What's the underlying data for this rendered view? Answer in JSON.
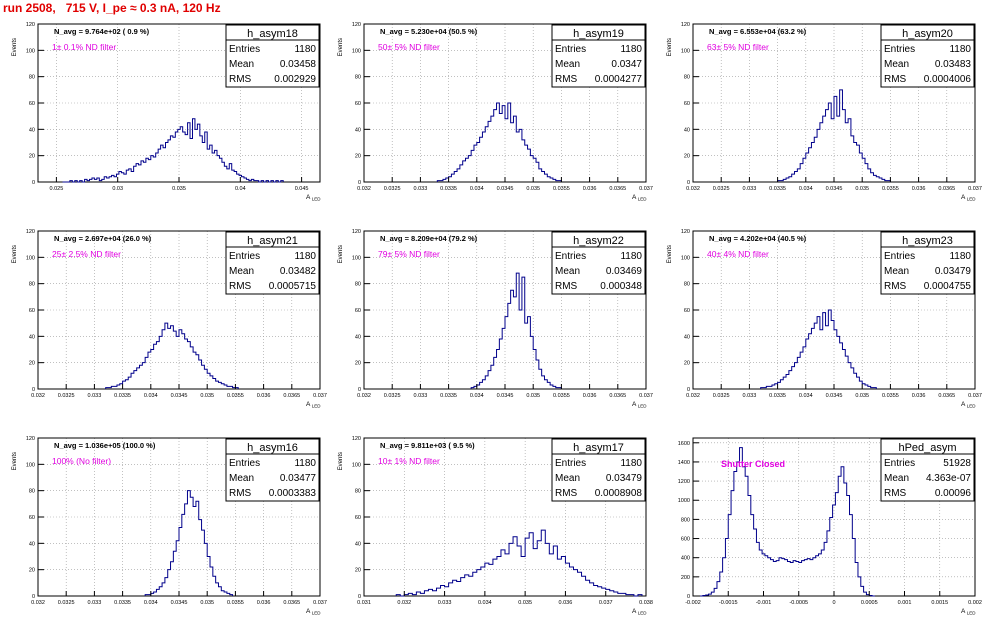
{
  "title": "run 2508,   715 V, I_pe ≈ 0.3 nA, 120 Hz",
  "colors": {
    "title": "#e00000",
    "histogram": "#00008b",
    "annotation": "#e000e0",
    "grid": "#9a9a9a"
  },
  "chart_data": [
    {
      "type": "histogram",
      "name": "h_asym18",
      "ylabel": "Events",
      "xlabel": "",
      "xlim": [
        0.0235,
        0.0465
      ],
      "ylim": [
        0,
        120
      ],
      "xticks": [
        0.025,
        0.03,
        0.035,
        0.04,
        0.045
      ],
      "xtick_labels": [
        "0.025",
        "0.03",
        "0.035",
        "0.04",
        "0.045"
      ],
      "yticks": [
        0,
        20,
        40,
        60,
        80,
        100,
        120
      ],
      "ytick_labels": [
        "0",
        "20",
        "40",
        "60",
        "80",
        "100",
        "120"
      ],
      "grid": true,
      "stats": {
        "entries": "1180",
        "mean": "0.03458",
        "rms": "0.002929"
      },
      "annotations": [
        "N_avg = 9.764e+02 ( 0.9 %)",
        "1± 0.1% ND filter"
      ],
      "bin_width": 0.0002,
      "bins_start": 0.0255,
      "values": [
        0,
        0,
        0,
        1,
        0,
        1,
        0,
        1,
        0,
        2,
        1,
        2,
        3,
        2,
        3,
        1,
        2,
        4,
        3,
        4,
        5,
        4,
        6,
        8,
        7,
        6,
        9,
        10,
        8,
        12,
        14,
        13,
        16,
        15,
        18,
        17,
        20,
        19,
        22,
        25,
        28,
        26,
        30,
        32,
        35,
        34,
        38,
        40,
        42,
        38,
        36,
        45,
        33,
        48,
        40,
        44,
        35,
        30,
        38,
        25,
        28,
        22,
        24,
        20,
        18,
        15,
        12,
        10,
        14,
        9,
        8,
        6,
        5,
        4,
        3,
        2,
        1,
        2,
        1,
        1,
        0,
        1,
        0,
        1,
        0,
        1,
        0,
        1,
        0,
        1
      ]
    },
    {
      "type": "histogram",
      "name": "h_asym19",
      "ylabel": "Events",
      "xlabel": "",
      "xlim": [
        0.032,
        0.037
      ],
      "ylim": [
        0,
        120
      ],
      "xticks": [
        0.032,
        0.0325,
        0.033,
        0.0335,
        0.034,
        0.0345,
        0.035,
        0.0355,
        0.036,
        0.0365,
        0.037
      ],
      "xtick_labels": [
        "0.032",
        "0.0325",
        "0.033",
        "0.0335",
        "0.034",
        "0.0345",
        "0.035",
        "0.0355",
        "0.036",
        "0.0365",
        "0.037"
      ],
      "yticks": [
        0,
        20,
        40,
        60,
        80,
        100,
        120
      ],
      "ytick_labels": [
        "0",
        "20",
        "40",
        "60",
        "80",
        "100",
        "120"
      ],
      "grid": true,
      "stats": {
        "entries": "1180",
        "mean": "0.0347",
        "rms": "0.0004277"
      },
      "annotations": [
        "N_avg = 5.230e+04 (50.5 %)",
        "50± 5% ND filter"
      ],
      "bin_width": 5e-05,
      "bins_start": 0.0333,
      "values": [
        1,
        1,
        2,
        3,
        4,
        6,
        8,
        10,
        13,
        16,
        18,
        20,
        24,
        28,
        30,
        34,
        38,
        42,
        46,
        50,
        55,
        60,
        52,
        58,
        48,
        60,
        45,
        50,
        38,
        40,
        32,
        28,
        25,
        20,
        18,
        15,
        10,
        8,
        6,
        4,
        3,
        2,
        1,
        1
      ]
    },
    {
      "type": "histogram",
      "name": "h_asym20",
      "ylabel": "Events",
      "xlabel": "",
      "xlim": [
        0.032,
        0.037
      ],
      "ylim": [
        0,
        120
      ],
      "xticks": [
        0.032,
        0.0325,
        0.033,
        0.0335,
        0.034,
        0.0345,
        0.035,
        0.0355,
        0.036,
        0.0365,
        0.037
      ],
      "xtick_labels": [
        "0.032",
        "0.0325",
        "0.033",
        "0.0335",
        "0.034",
        "0.0345",
        "0.035",
        "0.0355",
        "0.036",
        "0.0365",
        "0.037"
      ],
      "yticks": [
        0,
        20,
        40,
        60,
        80,
        100,
        120
      ],
      "ytick_labels": [
        "0",
        "20",
        "40",
        "60",
        "80",
        "100",
        "120"
      ],
      "grid": true,
      "stats": {
        "entries": "1180",
        "mean": "0.03483",
        "rms": "0.0004006"
      },
      "annotations": [
        "N_avg = 6.553e+04 (63.2 %)",
        "63± 5% ND filter"
      ],
      "bin_width": 5e-05,
      "bins_start": 0.0335,
      "values": [
        1,
        1,
        2,
        3,
        4,
        6,
        8,
        10,
        14,
        18,
        22,
        26,
        30,
        34,
        40,
        45,
        50,
        55,
        60,
        48,
        65,
        50,
        70,
        55,
        45,
        48,
        35,
        30,
        28,
        22,
        18,
        14,
        10,
        7,
        5,
        4,
        3,
        2,
        1,
        1
      ]
    },
    {
      "type": "histogram",
      "name": "h_asym21",
      "ylabel": "Events",
      "xlabel": "",
      "xlim": [
        0.032,
        0.037
      ],
      "ylim": [
        0,
        120
      ],
      "xticks": [
        0.032,
        0.0325,
        0.033,
        0.0335,
        0.034,
        0.0345,
        0.035,
        0.0355,
        0.036,
        0.0365,
        0.037
      ],
      "xtick_labels": [
        "0.032",
        "0.0325",
        "0.033",
        "0.0335",
        "0.034",
        "0.0345",
        "0.035",
        "0.0355",
        "0.036",
        "0.0365",
        "0.037"
      ],
      "yticks": [
        0,
        20,
        40,
        60,
        80,
        100,
        120
      ],
      "ytick_labels": [
        "0",
        "20",
        "40",
        "60",
        "80",
        "100",
        "120"
      ],
      "grid": true,
      "stats": {
        "entries": "1180",
        "mean": "0.03482",
        "rms": "0.0005715"
      },
      "annotations": [
        "N_avg = 2.697e+04 (26.0 %)",
        "25± 2.5% ND filter"
      ],
      "bin_width": 5e-05,
      "bins_start": 0.0332,
      "values": [
        1,
        1,
        2,
        2,
        3,
        4,
        6,
        7,
        9,
        12,
        14,
        16,
        18,
        20,
        24,
        28,
        30,
        34,
        36,
        40,
        45,
        50,
        46,
        48,
        44,
        40,
        45,
        42,
        38,
        36,
        32,
        28,
        26,
        22,
        18,
        15,
        12,
        10,
        8,
        6,
        5,
        4,
        3,
        2,
        2,
        1,
        1
      ]
    },
    {
      "type": "histogram",
      "name": "h_asym22",
      "ylabel": "Events",
      "xlabel": "",
      "xlim": [
        0.032,
        0.037
      ],
      "ylim": [
        0,
        120
      ],
      "xticks": [
        0.032,
        0.0325,
        0.033,
        0.0335,
        0.034,
        0.0345,
        0.035,
        0.0355,
        0.036,
        0.0365,
        0.037
      ],
      "xtick_labels": [
        "0.032",
        "0.0325",
        "0.033",
        "0.0335",
        "0.034",
        "0.0345",
        "0.035",
        "0.0355",
        "0.036",
        "0.0365",
        "0.037"
      ],
      "yticks": [
        0,
        20,
        40,
        60,
        80,
        100,
        120
      ],
      "ytick_labels": [
        "0",
        "20",
        "40",
        "60",
        "80",
        "100",
        "120"
      ],
      "grid": true,
      "stats": {
        "entries": "1180",
        "mean": "0.03469",
        "rms": "0.000348"
      },
      "annotations": [
        "N_avg = 8.209e+04 (79.2 %)",
        "79± 5% ND filter"
      ],
      "bin_width": 5e-05,
      "bins_start": 0.0339,
      "values": [
        1,
        2,
        3,
        5,
        7,
        10,
        14,
        18,
        24,
        30,
        38,
        46,
        55,
        65,
        75,
        70,
        88,
        60,
        85,
        50,
        55,
        40,
        30,
        22,
        15,
        10,
        7,
        5,
        3,
        2,
        1,
        1
      ]
    },
    {
      "type": "histogram",
      "name": "h_asym23",
      "ylabel": "Events",
      "xlabel": "",
      "xlim": [
        0.032,
        0.037
      ],
      "ylim": [
        0,
        120
      ],
      "xticks": [
        0.032,
        0.0325,
        0.033,
        0.0335,
        0.034,
        0.0345,
        0.035,
        0.0355,
        0.036,
        0.0365,
        0.037
      ],
      "xtick_labels": [
        "0.032",
        "0.0325",
        "0.033",
        "0.0335",
        "0.034",
        "0.0345",
        "0.035",
        "0.0355",
        "0.036",
        "0.0365",
        "0.037"
      ],
      "yticks": [
        0,
        20,
        40,
        60,
        80,
        100,
        120
      ],
      "ytick_labels": [
        "0",
        "20",
        "40",
        "60",
        "80",
        "100",
        "120"
      ],
      "grid": true,
      "stats": {
        "entries": "1180",
        "mean": "0.03479",
        "rms": "0.0004755"
      },
      "annotations": [
        "N_avg = 4.202e+04 (40.5 %)",
        "40± 4% ND filter"
      ],
      "bin_width": 5e-05,
      "bins_start": 0.0332,
      "values": [
        1,
        1,
        2,
        2,
        3,
        4,
        5,
        7,
        9,
        11,
        14,
        17,
        20,
        24,
        28,
        32,
        38,
        42,
        46,
        50,
        55,
        45,
        58,
        48,
        60,
        52,
        45,
        40,
        35,
        30,
        25,
        20,
        16,
        12,
        9,
        6,
        4,
        3,
        2,
        1,
        1
      ]
    },
    {
      "type": "histogram",
      "name": "h_asym16",
      "ylabel": "Events",
      "xlabel": "",
      "xlim": [
        0.032,
        0.037
      ],
      "ylim": [
        0,
        120
      ],
      "xticks": [
        0.032,
        0.0325,
        0.033,
        0.0335,
        0.034,
        0.0345,
        0.035,
        0.0355,
        0.036,
        0.0365,
        0.037
      ],
      "xtick_labels": [
        "0.032",
        "0.0325",
        "0.033",
        "0.0335",
        "0.034",
        "0.0345",
        "0.035",
        "0.0355",
        "0.036",
        "0.0365",
        "0.037"
      ],
      "yticks": [
        0,
        20,
        40,
        60,
        80,
        100,
        120
      ],
      "ytick_labels": [
        "0",
        "20",
        "40",
        "60",
        "80",
        "100",
        "120"
      ],
      "grid": true,
      "stats": {
        "entries": "1180",
        "mean": "0.03477",
        "rms": "0.0003383"
      },
      "annotations": [
        "N_avg = 1.036e+05 (100.0 %)",
        "100% (No filter)"
      ],
      "bin_width": 5e-05,
      "bins_start": 0.0339,
      "values": [
        1,
        1,
        2,
        3,
        5,
        7,
        10,
        14,
        20,
        26,
        34,
        42,
        52,
        62,
        70,
        80,
        75,
        68,
        72,
        58,
        50,
        40,
        30,
        22,
        15,
        10,
        7,
        4,
        3,
        2,
        1
      ]
    },
    {
      "type": "histogram",
      "name": "h_asym17",
      "ylabel": "Events",
      "xlabel": "",
      "xlim": [
        0.031,
        0.038
      ],
      "ylim": [
        0,
        120
      ],
      "xticks": [
        0.031,
        0.032,
        0.033,
        0.034,
        0.035,
        0.036,
        0.037,
        0.038
      ],
      "xtick_labels": [
        "0.031",
        "0.032",
        "0.033",
        "0.034",
        "0.035",
        "0.036",
        "0.037",
        "0.038"
      ],
      "yticks": [
        0,
        20,
        40,
        60,
        80,
        100,
        120
      ],
      "ytick_labels": [
        "0",
        "20",
        "40",
        "60",
        "80",
        "100",
        "120"
      ],
      "grid": true,
      "stats": {
        "entries": "1180",
        "mean": "0.03479",
        "rms": "0.0008908"
      },
      "annotations": [
        "N_avg = 9.811e+03 ( 9.5 %)",
        "10± 1% ND filter"
      ],
      "bin_width": 0.0001,
      "bins_start": 0.0318,
      "values": [
        1,
        0,
        1,
        2,
        1,
        3,
        2,
        4,
        5,
        4,
        6,
        8,
        7,
        10,
        12,
        11,
        14,
        16,
        15,
        18,
        20,
        22,
        25,
        24,
        28,
        30,
        35,
        32,
        40,
        45,
        38,
        30,
        44,
        48,
        36,
        42,
        50,
        40,
        32,
        38,
        28,
        30,
        25,
        22,
        20,
        18,
        15,
        12,
        10,
        8,
        7,
        6,
        5,
        4,
        3,
        2,
        2,
        1,
        1,
        0,
        1
      ]
    },
    {
      "type": "histogram",
      "name": "hPed_asym",
      "ylabel": "",
      "xlabel": "",
      "xlim": [
        -0.002,
        0.002
      ],
      "ylim": [
        0,
        1650
      ],
      "xticks": [
        -0.002,
        -0.0015,
        -0.001,
        -0.0005,
        0,
        0.0005,
        0.001,
        0.0015,
        0.002
      ],
      "xtick_labels": [
        "-0.002",
        "-0.0015",
        "-0.001",
        "-0.0005",
        "0",
        "0.0005",
        "0.001",
        "0.0015",
        "0.002"
      ],
      "yticks": [
        0,
        200,
        400,
        600,
        800,
        1000,
        1200,
        1400,
        1600
      ],
      "ytick_labels": [
        "0",
        "200",
        "400",
        "600",
        "800",
        "1000",
        "1200",
        "1400",
        "1600"
      ],
      "grid": true,
      "stats": {
        "entries": "51928",
        "mean": "4.363e-07",
        "rms": "0.00096"
      },
      "annotations": [
        "Shutter Closed"
      ],
      "bin_width": 4e-05,
      "bins_start": -0.0019,
      "values": [
        0,
        5,
        10,
        20,
        40,
        80,
        150,
        250,
        400,
        600,
        850,
        1100,
        1300,
        1400,
        1550,
        1350,
        1250,
        1050,
        850,
        700,
        560,
        480,
        440,
        420,
        400,
        380,
        360,
        370,
        400,
        390,
        380,
        360,
        350,
        370,
        360,
        350,
        370,
        380,
        390,
        380,
        400,
        420,
        440,
        480,
        560,
        680,
        820,
        950,
        1080,
        1250,
        1350,
        1180,
        1050,
        850,
        600,
        350,
        200,
        100,
        40,
        15,
        5,
        0
      ]
    }
  ]
}
